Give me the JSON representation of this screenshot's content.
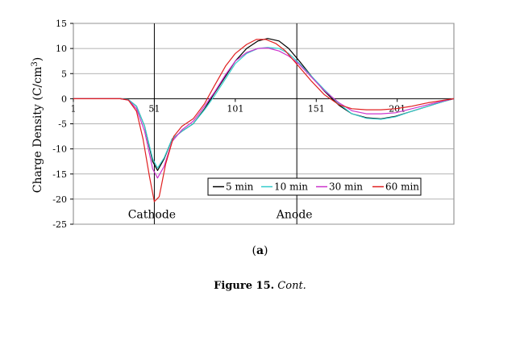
{
  "chart_data": {
    "type": "line",
    "ylabel": "Charge Density (C/cm",
    "ylabel_sup": "3",
    "ylabel_close": ")",
    "ylim": [
      -25,
      15
    ],
    "yticks": [
      "15",
      "10",
      "5",
      "0",
      "-5",
      "-10",
      "-15",
      "-20",
      "-25"
    ],
    "xlim": [
      1,
      236
    ],
    "xticks": [
      "1",
      "51",
      "101",
      "151",
      "201"
    ],
    "xtick_values": [
      1,
      51,
      101,
      151,
      201
    ],
    "grid": true,
    "vlines": [
      51,
      139
    ],
    "region_labels": [
      "Cathode",
      "Anode"
    ],
    "region_label_x": [
      51,
      139
    ],
    "region_label_y": -23,
    "legend_position": "inside-lower-right",
    "series": [
      {
        "name": "5 min",
        "color": "#000000",
        "x": [
          1,
          20,
          30,
          35,
          40,
          45,
          50,
          53,
          57,
          62,
          68,
          75,
          82,
          88,
          95,
          101,
          108,
          115,
          121,
          128,
          134,
          140,
          148,
          156,
          165,
          173,
          182,
          191,
          200,
          210,
          220,
          230,
          236
        ],
        "y": [
          0,
          0,
          0,
          -0.2,
          -1.5,
          -5.5,
          -12.5,
          -14.3,
          -12,
          -8,
          -6.5,
          -5,
          -2,
          1,
          4.5,
          7.5,
          10,
          11.5,
          12,
          11.5,
          10,
          7.7,
          4.5,
          1.5,
          -1.3,
          -3,
          -3.8,
          -4,
          -3.5,
          -2.5,
          -1.5,
          -0.5,
          0
        ]
      },
      {
        "name": "10 min",
        "color": "#33cccc",
        "x": [
          1,
          20,
          30,
          35,
          40,
          45,
          50,
          53,
          57,
          62,
          68,
          75,
          82,
          88,
          95,
          101,
          108,
          115,
          121,
          128,
          134,
          140,
          148,
          156,
          165,
          173,
          182,
          191,
          200,
          210,
          220,
          230,
          236
        ],
        "y": [
          0,
          0,
          0,
          -0.2,
          -1.5,
          -5.5,
          -12,
          -13.8,
          -11.8,
          -8,
          -6.5,
          -5,
          -2.2,
          0.5,
          4,
          7,
          9,
          10,
          10.2,
          10,
          9,
          7.2,
          4.5,
          1.8,
          -1,
          -3,
          -3.9,
          -4.1,
          -3.6,
          -2.5,
          -1.5,
          -0.5,
          0
        ]
      },
      {
        "name": "30 min",
        "color": "#cc33cc",
        "x": [
          1,
          20,
          30,
          35,
          40,
          45,
          50,
          53,
          57,
          62,
          68,
          75,
          82,
          88,
          95,
          101,
          108,
          115,
          121,
          128,
          134,
          140,
          148,
          156,
          165,
          173,
          182,
          191,
          200,
          210,
          220,
          230,
          236
        ],
        "y": [
          0,
          0,
          0,
          -0.3,
          -2,
          -6.5,
          -14,
          -15.8,
          -13.5,
          -8.5,
          -6.2,
          -4.5,
          -1.5,
          1.2,
          4.8,
          7.5,
          9.2,
          10,
          10.1,
          9.5,
          8.5,
          7,
          4.3,
          1.6,
          -0.8,
          -2.4,
          -3,
          -3,
          -2.8,
          -2,
          -1.2,
          -0.4,
          0
        ]
      },
      {
        "name": "60 min",
        "color": "#e02020",
        "x": [
          1,
          20,
          30,
          35,
          40,
          44,
          48,
          51,
          54,
          58,
          63,
          68,
          75,
          82,
          88,
          95,
          101,
          108,
          114,
          120,
          126,
          132,
          140,
          148,
          156,
          165,
          173,
          182,
          191,
          200,
          210,
          220,
          230,
          236
        ],
        "y": [
          0,
          0,
          0,
          -0.3,
          -2.5,
          -8,
          -15.5,
          -20.5,
          -19.5,
          -13,
          -7.5,
          -5.5,
          -4,
          -1,
          2.5,
          6.5,
          9,
          10.8,
          11.8,
          11.8,
          11,
          9.5,
          6.5,
          3.5,
          0.8,
          -1.2,
          -2,
          -2.2,
          -2.2,
          -2,
          -1.5,
          -0.8,
          -0.3,
          0
        ]
      }
    ],
    "legend_order": [
      0,
      1,
      2,
      3
    ]
  },
  "subfigure_label": {
    "open": "(",
    "letter": "a",
    "close": ")"
  },
  "caption": {
    "label": "Figure 15.",
    "text": "Cont."
  }
}
